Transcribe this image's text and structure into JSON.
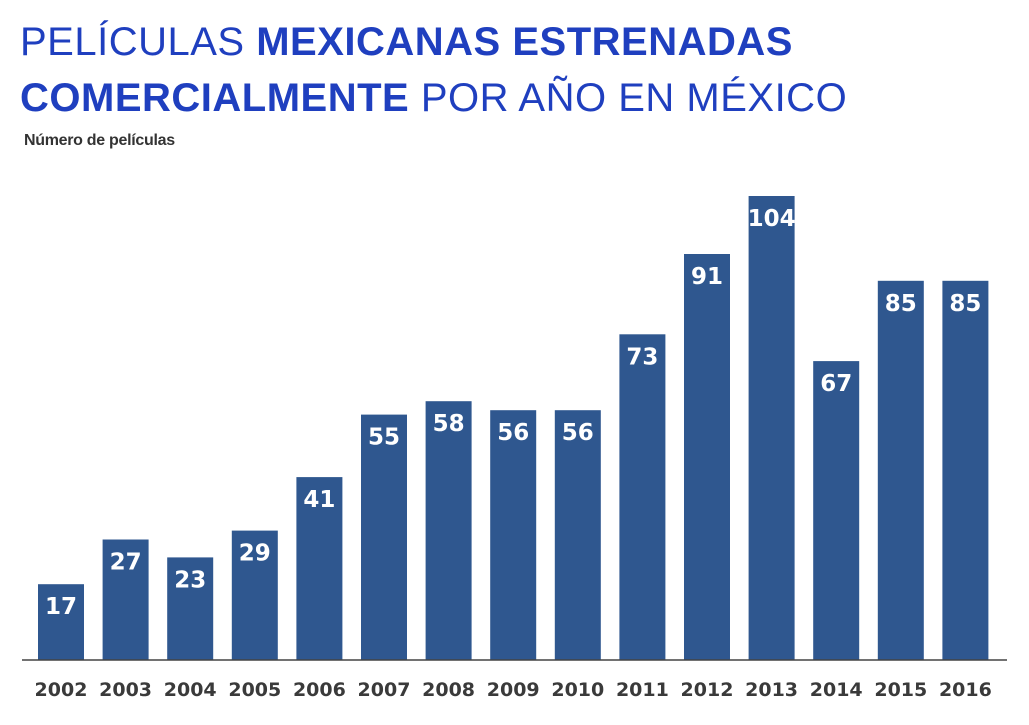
{
  "title": {
    "part1": "PELÍCULAS ",
    "part2_bold": "MEXICANAS ESTRENADAS",
    "part3_bold": "COMERCIALMENTE",
    "part4": " POR AÑO EN MÉXICO"
  },
  "colors": {
    "title": "#1f3fbf",
    "bar": "#2f578f",
    "bar_label": "#ffffff"
  },
  "chart_data": {
    "type": "bar",
    "title": "PELÍCULAS MEXICANAS ESTRENADAS COMERCIALMENTE POR AÑO EN MÉXICO",
    "ylabel": "Número de películas",
    "xlabel": "",
    "categories": [
      "2002",
      "2003",
      "2004",
      "2005",
      "2006",
      "2007",
      "2008",
      "2009",
      "2010",
      "2011",
      "2012",
      "2013",
      "2014",
      "2015",
      "2016"
    ],
    "values": [
      17,
      27,
      23,
      29,
      41,
      55,
      58,
      56,
      56,
      73,
      91,
      104,
      67,
      85,
      85
    ],
    "ylim": [
      0,
      104
    ],
    "grid": false,
    "data_labels": true
  }
}
